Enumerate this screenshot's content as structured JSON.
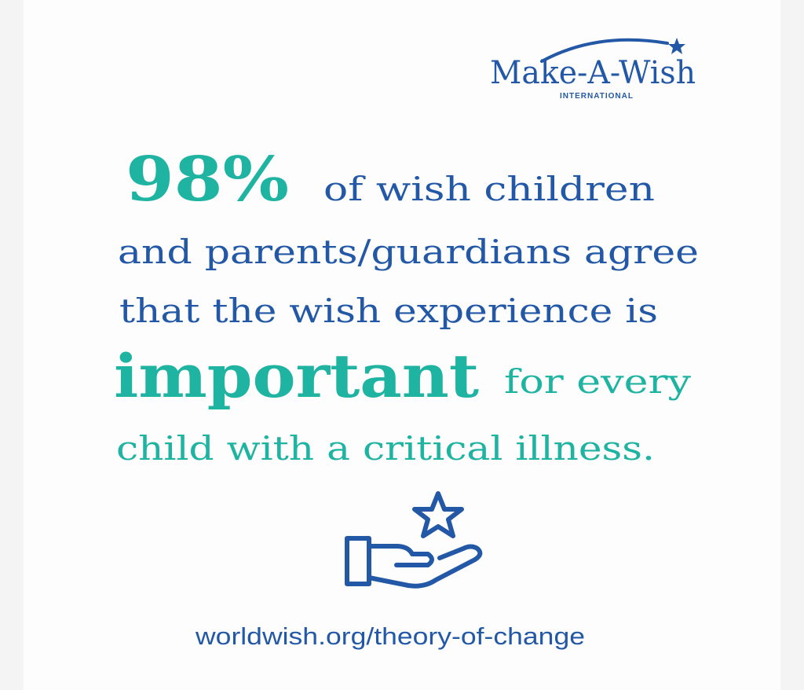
{
  "logo": {
    "name": "Make-A-Wish",
    "subtitle": "INTERNATIONAL"
  },
  "statement": {
    "figure": "98%",
    "line1": "of wish children",
    "line2": "and parents/guardians agree",
    "line3": "that the wish experience is",
    "emphasis": "important",
    "line4": "for every",
    "line5": "child with a critical illness."
  },
  "footer": {
    "url": "worldwish.org/theory-of-change"
  }
}
